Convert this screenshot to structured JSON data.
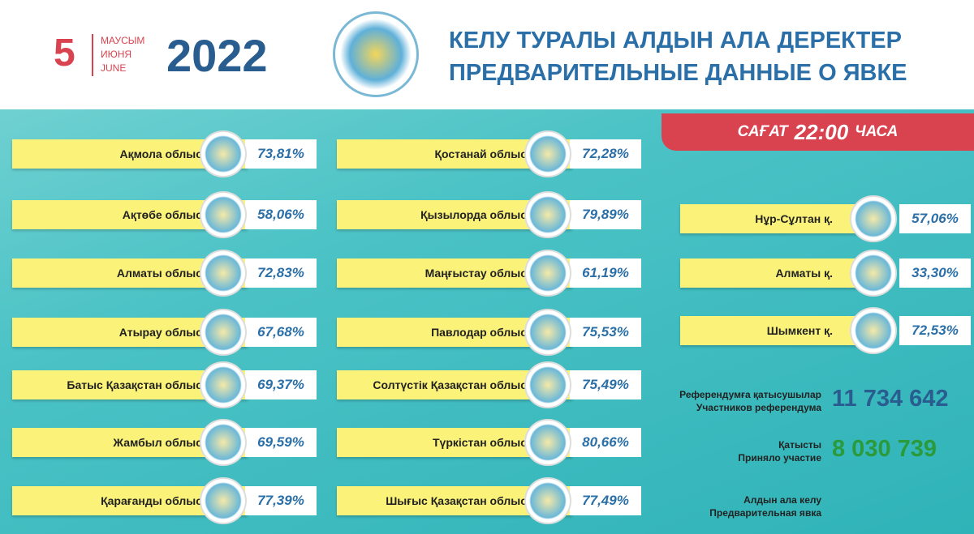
{
  "header": {
    "day": "5",
    "months": [
      "МАУСЫМ",
      "ИЮНЯ",
      "JUNE"
    ],
    "year": "2022",
    "title": [
      "КЕЛУ ТУРАЛЫ АЛДЫН АЛА ДЕРЕКТЕР",
      "ПРЕДВАРИТЕЛЬНЫЕ ДАННЫЕ О ЯВКЕ"
    ]
  },
  "badge": {
    "prefix": "САҒАТ",
    "time": "22:00",
    "suffix": "ЧАСА"
  },
  "columns": [
    {
      "rows": [
        {
          "name": "Ақмола облысы",
          "value": "73,81%"
        },
        {
          "name": "Ақтөбе облысы",
          "value": "58,06%"
        },
        {
          "name": "Алматы облысы",
          "value": "72,83%"
        },
        {
          "name": "Атырау облысы",
          "value": "67,68%"
        },
        {
          "name": "Батыс Қазақстан облысы",
          "value": "69,37%"
        },
        {
          "name": "Жамбыл облысы",
          "value": "69,59%"
        },
        {
          "name": "Қарағанды облысы",
          "value": "77,39%"
        }
      ]
    },
    {
      "rows": [
        {
          "name": "Қостанай облысы",
          "value": "72,28%"
        },
        {
          "name": "Қызылорда облысы",
          "value": "79,89%"
        },
        {
          "name": "Маңғыстау облысы",
          "value": "61,19%"
        },
        {
          "name": "Павлодар облысы",
          "value": "75,53%"
        },
        {
          "name": "Солтүстік Қазақстан облысы",
          "value": "75,49%"
        },
        {
          "name": "Түркістан облысы",
          "value": "80,66%"
        },
        {
          "name": "Шығыс Қазақстан облысы",
          "value": "77,49%"
        }
      ]
    },
    {
      "rows": [
        {
          "name": "Нұр-Сұлтан қ.",
          "value": "57,06%"
        },
        {
          "name": "Алматы қ.",
          "value": "33,30%"
        },
        {
          "name": "Шымкент қ.",
          "value": "72,53%"
        }
      ]
    }
  ],
  "stats": [
    {
      "label": [
        "Референдумға қатысушылар",
        "Участников референдума"
      ],
      "value": "11 734 642"
    },
    {
      "label": [
        "Қатысты",
        "Приняло участие"
      ],
      "value": "8 030 739"
    },
    {
      "label": [
        "Алдын ала келу",
        "Предварительная явка"
      ]
    }
  ]
}
